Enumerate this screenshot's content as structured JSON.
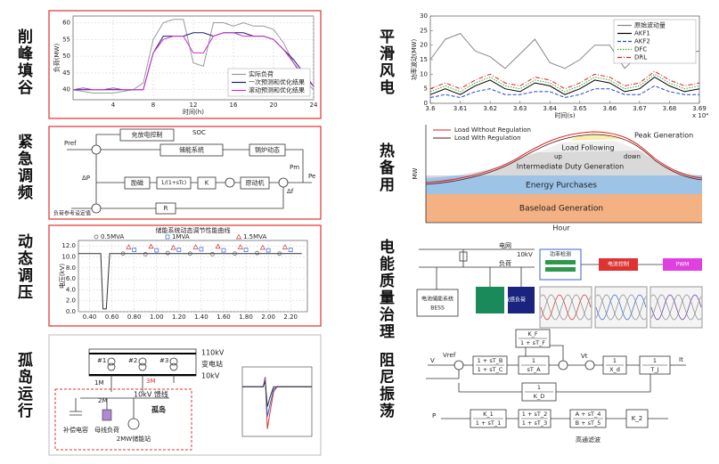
{
  "labels": {
    "left": [
      "削峰填谷",
      "紧急调频",
      "动态调压",
      "孤岛运行"
    ],
    "right": [
      "平滑风电",
      "热备用",
      "电能质量治理",
      "阻尼振荡"
    ]
  },
  "chart_data": [
    {
      "type": "line",
      "xlabel": "时间(h)",
      "ylabel": "负荷(MW)",
      "xlim": [
        0,
        24
      ],
      "ylim": [
        37,
        62
      ],
      "xticks": [
        4,
        8,
        12,
        16,
        20,
        24
      ],
      "yticks": [
        40,
        45,
        50,
        55,
        60
      ],
      "grid": true,
      "legend": "lower right",
      "x": [
        0,
        1,
        2,
        3,
        4,
        5,
        6,
        7,
        8,
        9,
        10,
        11,
        12,
        13,
        14,
        15,
        16,
        17,
        18,
        19,
        20,
        21,
        22,
        23,
        24
      ],
      "series": [
        {
          "name": "实际负荷",
          "color": "#999999",
          "values": [
            40,
            39.5,
            39,
            39,
            39,
            39.5,
            40,
            42,
            55,
            60,
            61,
            61,
            48,
            47,
            60,
            60,
            59,
            60,
            59,
            59,
            58,
            54,
            48,
            43,
            40
          ]
        },
        {
          "name": "一次预测和优化结果",
          "color": "#1a1a6e",
          "values": [
            40,
            40,
            40,
            40,
            40,
            40,
            40,
            40,
            51,
            56,
            56,
            56,
            57,
            57,
            56,
            57,
            57,
            57,
            56,
            56,
            55,
            52,
            49,
            45,
            41
          ]
        },
        {
          "name": "滚动预测和优化结果",
          "color": "#cc33cc",
          "values": [
            40,
            40.5,
            40,
            40,
            40.5,
            40,
            40,
            40,
            51,
            55,
            56,
            56,
            51,
            51,
            56,
            57,
            57,
            56,
            56,
            56,
            55,
            52,
            48,
            44,
            41
          ]
        }
      ]
    },
    {
      "type": "line",
      "title": "储能系统动态调节性能曲线",
      "ylabel": "电压(kV)",
      "xlim": [
        0.3,
        2.35
      ],
      "ylim": [
        0,
        13
      ],
      "grid": true,
      "legend": "top",
      "xticks": [
        {
          "value": 0.4,
          "label": "0.40"
        },
        {
          "value": 0.6,
          "label": "0.60"
        },
        {
          "value": 0.8,
          "label": "0.80"
        },
        {
          "value": 1.0,
          "label": "1.00"
        },
        {
          "value": 1.2,
          "label": "1.20"
        },
        {
          "value": 1.4,
          "label": "1.40"
        },
        {
          "value": 1.6,
          "label": "1.60"
        },
        {
          "value": 1.8,
          "label": "1.80"
        },
        {
          "value": 2.0,
          "label": "2.00"
        },
        {
          "value": 2.2,
          "label": "2.20"
        }
      ],
      "yticks": [
        {
          "value": 0,
          "label": "0.0"
        },
        {
          "value": 2,
          "label": "2.0"
        },
        {
          "value": 4,
          "label": "4.0"
        },
        {
          "value": 6,
          "label": "6.0"
        },
        {
          "value": 8,
          "label": "8.0"
        },
        {
          "value": 10,
          "label": "10.0"
        },
        {
          "value": 12,
          "label": "12.0"
        }
      ],
      "x": [
        0.3,
        0.5,
        0.52,
        0.55,
        0.58,
        0.6,
        2.3
      ],
      "series": [
        {
          "color": "#333333",
          "values": [
            10.6,
            10.6,
            0.5,
            0.5,
            10.6,
            10.6,
            10.6
          ]
        },
        {
          "name": "0.5MVA",
          "marker": "circle",
          "line": false,
          "color": "#555555",
          "x": [
            0.7,
            0.9,
            1.1,
            1.3,
            1.5,
            1.7,
            1.9,
            2.1
          ],
          "values": [
            10.6,
            10.5,
            10.7,
            10.6,
            10.5,
            10.6,
            10.7,
            10.6
          ]
        },
        {
          "name": "1MVA",
          "marker": "square",
          "line": false,
          "color": "#3366cc",
          "x": [
            0.8,
            1.0,
            1.2,
            1.4,
            1.6,
            1.8,
            2.0,
            2.2
          ],
          "values": [
            11.3,
            11.2,
            11.3,
            11.4,
            11.2,
            11.3,
            11.2,
            11.3
          ]
        },
        {
          "name": "1.5MVA",
          "marker": "triangle",
          "line": false,
          "color": "#cc3333",
          "x": [
            0.75,
            0.95,
            1.15,
            1.35,
            1.55,
            1.75,
            1.95,
            2.15
          ],
          "values": [
            11.8,
            11.9,
            11.7,
            11.8,
            11.9,
            11.8,
            11.7,
            11.8
          ]
        }
      ]
    },
    {
      "type": "line",
      "xlim": [
        0,
        10
      ],
      "ylim": [
        -1,
        0.4
      ],
      "grid": false,
      "x": [
        0,
        1,
        2,
        3,
        3.3,
        3.6,
        4,
        4.5,
        5,
        6,
        7,
        8,
        9,
        10
      ],
      "series": [
        {
          "color": "#dd3333",
          "values": [
            0,
            0,
            0,
            0,
            0.2,
            -0.85,
            -0.5,
            -0.1,
            0,
            0,
            0,
            0,
            0,
            0
          ]
        },
        {
          "color": "#3366cc",
          "values": [
            0,
            0,
            0,
            0,
            0.15,
            -0.6,
            -0.35,
            -0.05,
            0,
            0,
            0,
            0,
            0,
            0
          ]
        },
        {
          "color": "#333333",
          "values": [
            0,
            0,
            0,
            0,
            0.1,
            -0.4,
            -0.2,
            0,
            0,
            0,
            0,
            0,
            0,
            0
          ]
        }
      ]
    },
    {
      "type": "line",
      "xlabel": "时间(s)",
      "ylabel": "功率波动(MW)",
      "x_note": "x 10⁴",
      "xlim": [
        3.6,
        3.69
      ],
      "ylim": [
        0,
        30
      ],
      "xticks": [
        3.6,
        3.61,
        3.62,
        3.63,
        3.64,
        3.65,
        3.66,
        3.67,
        3.68,
        3.69
      ],
      "yticks": [
        0,
        5,
        10,
        15,
        20,
        25,
        30
      ],
      "grid": false,
      "legend": "upper right",
      "x": [
        3.6,
        3.605,
        3.61,
        3.615,
        3.62,
        3.625,
        3.63,
        3.635,
        3.64,
        3.645,
        3.65,
        3.655,
        3.66,
        3.665,
        3.67,
        3.675,
        3.68,
        3.685,
        3.69
      ],
      "series": [
        {
          "name": "原始波动量",
          "color": "#888888",
          "values": [
            15,
            22,
            24,
            18,
            16,
            12,
            17,
            22,
            14,
            12,
            15,
            20,
            20,
            12,
            17,
            24,
            20,
            17,
            18
          ]
        },
        {
          "name": "AKF1",
          "color": "#000000",
          "values": [
            3,
            5,
            3,
            6,
            8,
            5,
            4,
            7,
            6,
            3,
            5,
            8,
            7,
            4,
            5,
            9,
            6,
            4,
            5
          ]
        },
        {
          "name": "AKF2",
          "color": "#2244cc",
          "dash": "dashed",
          "values": [
            2,
            3,
            2,
            4,
            5,
            3,
            3,
            4,
            4,
            2,
            3,
            5,
            5,
            3,
            3,
            6,
            4,
            3,
            3
          ]
        },
        {
          "name": "DFC",
          "color": "#33aa33",
          "dash": "dotted",
          "values": [
            4,
            6,
            4,
            7,
            9,
            6,
            5,
            8,
            7,
            4,
            6,
            9,
            8,
            5,
            6,
            10,
            7,
            5,
            6
          ]
        },
        {
          "name": "DRL",
          "color": "#dd2222",
          "dash": "dashdot",
          "values": [
            5,
            7,
            5,
            8,
            10,
            7,
            6,
            9,
            8,
            5,
            7,
            10,
            9,
            6,
            7,
            11,
            8,
            6,
            7
          ]
        }
      ]
    }
  ],
  "frequency_diagram": {
    "blocks": [
      "充放电控制",
      "储能系统",
      "锅炉动态",
      "励磁",
      "1/(1+sTc)",
      "K",
      "原动机",
      "R"
    ],
    "signals": [
      "SOC",
      "Pref",
      "ΔP",
      "Δf",
      "Pm",
      "Pe"
    ],
    "note": "负荷参考设定值"
  },
  "island_diagram": {
    "buses": [
      "110kV",
      "10kV"
    ],
    "station": "变电站",
    "transformers": [
      "#1",
      "#2",
      "#3"
    ],
    "feeders": [
      "1M",
      "2M",
      "3M"
    ],
    "feeder_label": "10kV 馈线",
    "island": "孤岛",
    "capacitor": "补偿电容",
    "load": "母线负荷",
    "storage": "2MW储能站"
  },
  "standby": {
    "legend": [
      "Load Without Regulation",
      "Load With Regulation"
    ],
    "ylabel": "MW",
    "xlabel": "Hour",
    "layers": [
      "Peak Generation",
      "Load Following",
      "Intermediate Duty Generation",
      "Energy Purchases",
      "Baseload Generation"
    ],
    "up": "up",
    "down": "down"
  },
  "power_quality": {
    "bus": "10kV",
    "grid": "电网",
    "load": "负荷",
    "sensitive": "敏感负荷",
    "bess": "BESS",
    "storage": "电池储能系统",
    "flow": [
      "功率检测",
      "电流控制",
      "PWM"
    ]
  },
  "damping": {
    "signals": [
      "Vref",
      "V",
      "Vt",
      "It",
      "P"
    ],
    "filter": "高通滤波",
    "blocks": [
      {
        "num": "K_F",
        "den": "1 + sT_F"
      },
      {
        "num": "1 + sT_B",
        "den": "1 + sT_C"
      },
      {
        "num": "1",
        "den": "sT_A"
      },
      {
        "num": "1",
        "den": "X_d"
      },
      {
        "num": "1",
        "den": "T_J"
      },
      {
        "num": "1",
        "den": "K_D"
      },
      {
        "num": "K_1",
        "den": "1 + sT_1"
      },
      {
        "num": "1 + sT_2",
        "den": "1 + sT_3"
      },
      {
        "num": "A + sT_4",
        "den": "B + sT_5"
      },
      {
        "num": "K_2"
      }
    ]
  }
}
